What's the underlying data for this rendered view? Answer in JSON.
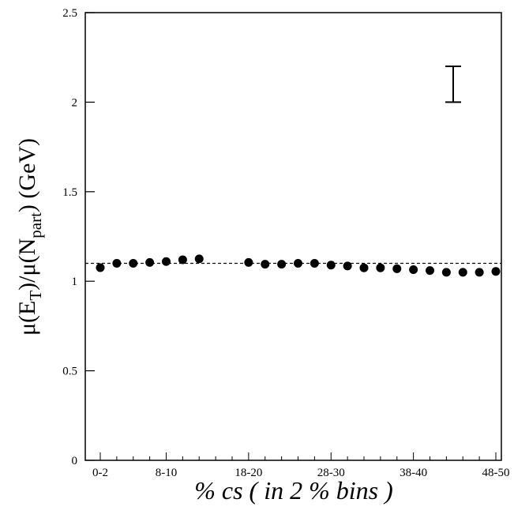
{
  "chart_data": {
    "type": "scatter",
    "ylabel_parts": [
      "μ(E",
      "T",
      ")/μ(N",
      "part",
      ") (GeV)"
    ],
    "xlabel": "% cs ( in 2 % bins )",
    "categories": [
      "0-2",
      null,
      null,
      null,
      "8-10",
      null,
      null,
      null,
      null,
      "18-20",
      null,
      null,
      null,
      null,
      "28-30",
      null,
      null,
      null,
      null,
      "38-40",
      null,
      null,
      null,
      null,
      "48-50"
    ],
    "values": [
      1.076,
      1.1,
      1.1,
      1.105,
      1.11,
      1.12,
      1.125,
      null,
      null,
      1.105,
      1.095,
      1.095,
      1.1,
      1.1,
      1.09,
      1.085,
      1.075,
      1.075,
      1.07,
      1.065,
      1.06,
      1.05,
      1.05,
      1.05,
      1.055
    ],
    "color": "#000000",
    "ylim": [
      0,
      2.5
    ],
    "yticks": [
      0,
      0.5,
      1,
      1.5,
      2,
      2.5
    ],
    "reference_line": 1.1,
    "error_bar": [
      2.0,
      2.2
    ]
  }
}
